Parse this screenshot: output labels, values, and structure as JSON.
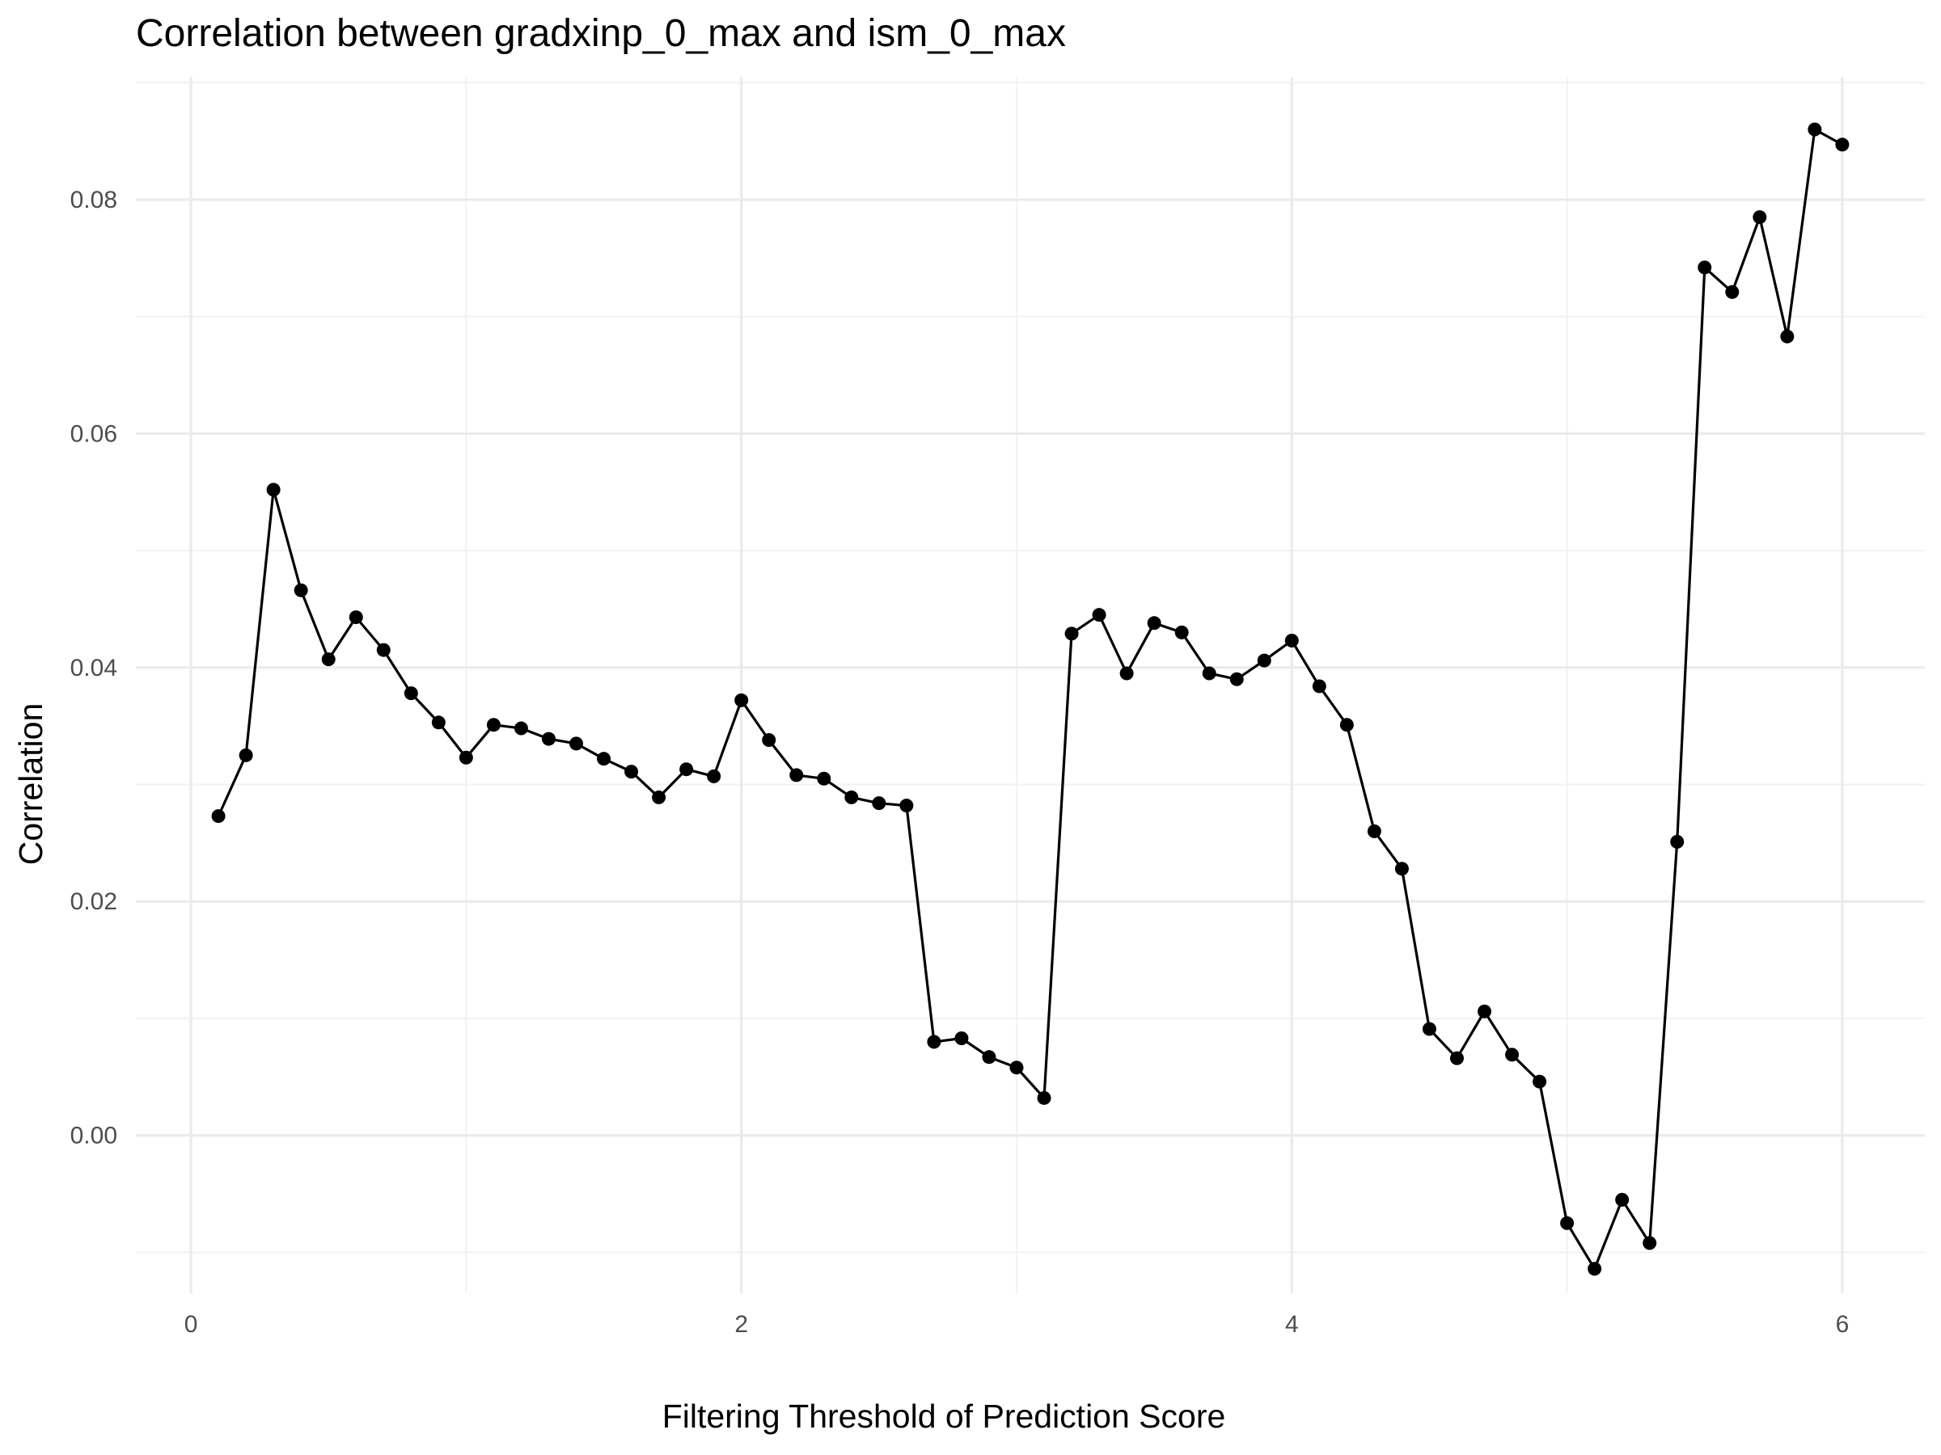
{
  "chart_data": {
    "type": "line",
    "title": "Correlation between gradxinp_0_max and ism_0_max",
    "xlabel": "Filtering Threshold of Prediction Score",
    "ylabel": "Correlation",
    "xlim": [
      -0.2,
      6.3
    ],
    "ylim": [
      -0.0135,
      0.0905
    ],
    "x_ticks": [
      0,
      2,
      4,
      6
    ],
    "x_tick_labels": [
      "0",
      "2",
      "4",
      "6"
    ],
    "y_ticks": [
      0.0,
      0.02,
      0.04,
      0.06,
      0.08
    ],
    "y_tick_labels": [
      "0.00",
      "0.02",
      "0.04",
      "0.06",
      "0.08"
    ],
    "x_minor_ticks": [
      1,
      3,
      5
    ],
    "y_minor_ticks": [
      -0.01,
      0.01,
      0.03,
      0.05,
      0.07,
      0.09
    ],
    "grid": true,
    "line_color": "#000000",
    "series": [
      {
        "x": [
          0.1,
          0.2,
          0.3,
          0.4,
          0.5,
          0.6,
          0.7,
          0.8,
          0.9,
          1.0,
          1.1,
          1.2,
          1.3,
          1.4,
          1.5,
          1.6,
          1.7,
          1.8,
          1.9,
          2.0,
          2.1,
          2.2,
          2.3,
          2.4,
          2.5,
          2.6,
          2.7,
          2.8,
          2.9,
          3.0,
          3.1,
          3.2,
          3.3,
          3.4,
          3.5,
          3.6,
          3.7,
          3.8,
          3.9,
          4.0,
          4.1,
          4.2,
          4.3,
          4.4,
          4.5,
          4.6,
          4.7,
          4.8,
          4.9,
          5.0,
          5.1,
          5.2,
          5.3,
          5.4,
          5.5,
          5.6,
          5.7,
          5.8,
          5.9,
          6.0
        ],
        "y": [
          0.0273,
          0.0325,
          0.0552,
          0.0466,
          0.0407,
          0.0443,
          0.0415,
          0.0378,
          0.0353,
          0.0323,
          0.0351,
          0.0348,
          0.0339,
          0.0335,
          0.0322,
          0.0311,
          0.0289,
          0.0313,
          0.0307,
          0.0372,
          0.0338,
          0.0308,
          0.0305,
          0.0289,
          0.0284,
          0.0282,
          0.008,
          0.0083,
          0.0067,
          0.0058,
          0.0032,
          0.0429,
          0.0445,
          0.0395,
          0.0438,
          0.043,
          0.0395,
          0.039,
          0.0406,
          0.0423,
          0.0384,
          0.0351,
          0.026,
          0.0228,
          0.0091,
          0.0066,
          0.0106,
          0.0069,
          0.0046,
          -0.0075,
          -0.0114,
          -0.0055,
          -0.0092,
          0.0251,
          0.0742,
          0.0721,
          0.0785,
          0.0683,
          0.086,
          0.0847
        ]
      }
    ]
  }
}
